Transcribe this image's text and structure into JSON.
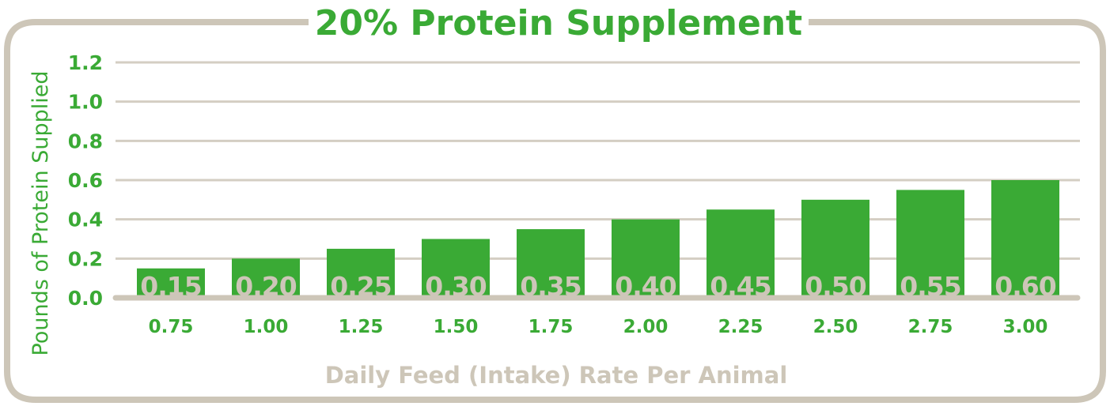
{
  "colors": {
    "green": "#3aaa35",
    "beige": "#cdc6b8",
    "grid": "#d4cec3"
  },
  "chart_data": {
    "type": "bar",
    "title": "20% Protein Supplement",
    "xlabel": "Daily Feed (Intake) Rate Per Animal",
    "ylabel": "Pounds of Protein Supplied",
    "categories": [
      "0.75",
      "1.00",
      "1.25",
      "1.50",
      "1.75",
      "2.00",
      "2.25",
      "2.50",
      "2.75",
      "3.00"
    ],
    "values": [
      0.15,
      0.2,
      0.25,
      0.3,
      0.35,
      0.4,
      0.45,
      0.5,
      0.55,
      0.6
    ],
    "data_labels": [
      "0.15",
      "0.20",
      "0.25",
      "0.30",
      "0.35",
      "0.40",
      "0.45",
      "0.50",
      "0.55",
      "0.60"
    ],
    "yticks": [
      "0.0",
      "0.2",
      "0.4",
      "0.6",
      "0.8",
      "1.0",
      "1.2"
    ],
    "ylim": [
      0,
      1.2
    ],
    "grid": true,
    "legend": "none"
  }
}
